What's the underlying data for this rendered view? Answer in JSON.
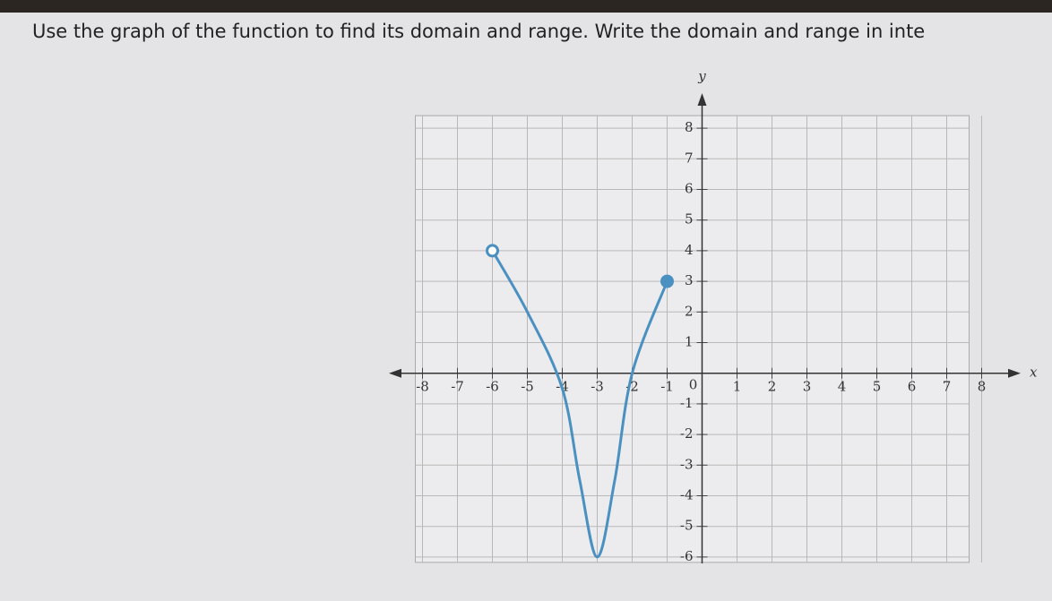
{
  "chart_data": {
    "type": "line",
    "title": "Use the graph of the function to find its domain and range. Write the domain and range in inte",
    "x_label": "x",
    "y_label": "y",
    "origin_label": "0",
    "x": [
      -6,
      -5,
      -4,
      -3.5,
      -3,
      -2.5,
      -2,
      -1
    ],
    "series": [
      {
        "color": "#4a90c0",
        "values": [
          4,
          2,
          -0.5,
          -3.5,
          -6,
          -3.5,
          0,
          3
        ]
      }
    ],
    "start_marker": "open",
    "end_marker": "closed",
    "xlim": [
      -8.5,
      8.5
    ],
    "ylim": [
      -6.5,
      8.5
    ],
    "xticks": [
      -8,
      -7,
      -6,
      -5,
      -4,
      -3,
      -2,
      -1,
      1,
      2,
      3,
      4,
      5,
      6,
      7,
      8
    ],
    "yticks": [
      -6,
      -5,
      -4,
      -3,
      -2,
      -1,
      1,
      2,
      3,
      4,
      5,
      6,
      7,
      8
    ],
    "grid": true
  }
}
